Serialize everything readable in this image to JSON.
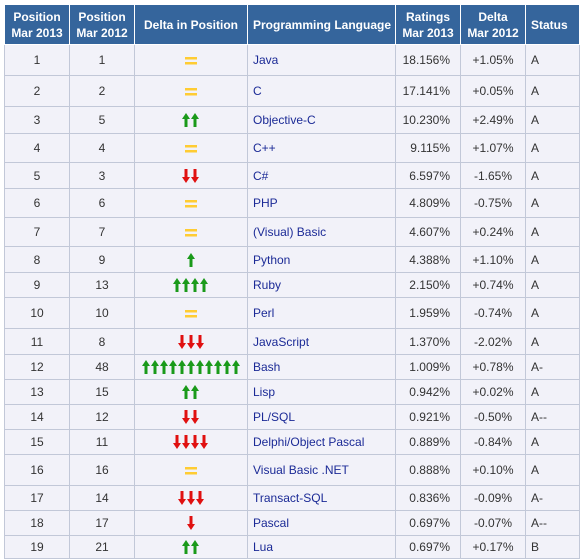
{
  "headers": {
    "pos2013": [
      "Position",
      "Mar 2013"
    ],
    "pos2012": [
      "Position",
      "Mar 2012"
    ],
    "delta_pos": "Delta in Position",
    "language": "Programming Language",
    "ratings": [
      "Ratings",
      "Mar 2013"
    ],
    "delta": [
      "Delta",
      "Mar 2012"
    ],
    "status": "Status"
  },
  "colors": {
    "header_bg": "#35659c",
    "row_bg": "#f2f2f9",
    "up_arrow": "#1a9a1a",
    "down_arrow": "#e01010",
    "equal_sign": "#ffcc33",
    "link_text": "#1b2a96"
  },
  "icons": {
    "up": "up-arrow-icon",
    "down": "down-arrow-icon",
    "same": "equal-sign-icon"
  },
  "rows": [
    {
      "pos2013": "1",
      "pos2012": "1",
      "change": "same",
      "arrows": 0,
      "language": "Java",
      "rating": "18.156%",
      "delta": "+1.05%",
      "status": "A"
    },
    {
      "pos2013": "2",
      "pos2012": "2",
      "change": "same",
      "arrows": 0,
      "language": "C",
      "rating": "17.141%",
      "delta": "+0.05%",
      "status": "A"
    },
    {
      "pos2013": "3",
      "pos2012": "5",
      "change": "up",
      "arrows": 2,
      "language": "Objective-C",
      "rating": "10.230%",
      "delta": "+2.49%",
      "status": "A"
    },
    {
      "pos2013": "4",
      "pos2012": "4",
      "change": "same",
      "arrows": 0,
      "language": "C++",
      "rating": "9.115%",
      "delta": "+1.07%",
      "status": "A"
    },
    {
      "pos2013": "5",
      "pos2012": "3",
      "change": "down",
      "arrows": 2,
      "language": "C#",
      "rating": "6.597%",
      "delta": "-1.65%",
      "status": "A"
    },
    {
      "pos2013": "6",
      "pos2012": "6",
      "change": "same",
      "arrows": 0,
      "language": "PHP",
      "rating": "4.809%",
      "delta": "-0.75%",
      "status": "A"
    },
    {
      "pos2013": "7",
      "pos2012": "7",
      "change": "same",
      "arrows": 0,
      "language": "(Visual) Basic",
      "rating": "4.607%",
      "delta": "+0.24%",
      "status": "A"
    },
    {
      "pos2013": "8",
      "pos2012": "9",
      "change": "up",
      "arrows": 1,
      "language": "Python",
      "rating": "4.388%",
      "delta": "+1.10%",
      "status": "A"
    },
    {
      "pos2013": "9",
      "pos2012": "13",
      "change": "up",
      "arrows": 4,
      "language": "Ruby",
      "rating": "2.150%",
      "delta": "+0.74%",
      "status": "A"
    },
    {
      "pos2013": "10",
      "pos2012": "10",
      "change": "same",
      "arrows": 0,
      "language": "Perl",
      "rating": "1.959%",
      "delta": "-0.74%",
      "status": "A"
    },
    {
      "pos2013": "11",
      "pos2012": "8",
      "change": "down",
      "arrows": 3,
      "language": "JavaScript",
      "rating": "1.370%",
      "delta": "-2.02%",
      "status": "A"
    },
    {
      "pos2013": "12",
      "pos2012": "48",
      "change": "up",
      "arrows": 11,
      "language": "Bash",
      "rating": "1.009%",
      "delta": "+0.78%",
      "status": "A-"
    },
    {
      "pos2013": "13",
      "pos2012": "15",
      "change": "up",
      "arrows": 2,
      "language": "Lisp",
      "rating": "0.942%",
      "delta": "+0.02%",
      "status": "A"
    },
    {
      "pos2013": "14",
      "pos2012": "12",
      "change": "down",
      "arrows": 2,
      "language": "PL/SQL",
      "rating": "0.921%",
      "delta": "-0.50%",
      "status": "A--"
    },
    {
      "pos2013": "15",
      "pos2012": "11",
      "change": "down",
      "arrows": 4,
      "language": "Delphi/Object Pascal",
      "rating": "0.889%",
      "delta": "-0.84%",
      "status": "A"
    },
    {
      "pos2013": "16",
      "pos2012": "16",
      "change": "same",
      "arrows": 0,
      "language": "Visual Basic .NET",
      "rating": "0.888%",
      "delta": "+0.10%",
      "status": "A"
    },
    {
      "pos2013": "17",
      "pos2012": "14",
      "change": "down",
      "arrows": 3,
      "language": "Transact-SQL",
      "rating": "0.836%",
      "delta": "-0.09%",
      "status": "A-"
    },
    {
      "pos2013": "18",
      "pos2012": "17",
      "change": "down",
      "arrows": 1,
      "language": "Pascal",
      "rating": "0.697%",
      "delta": "-0.07%",
      "status": "A--"
    },
    {
      "pos2013": "19",
      "pos2012": "21",
      "change": "up",
      "arrows": 2,
      "language": "Lua",
      "rating": "0.697%",
      "delta": "+0.17%",
      "status": "B"
    }
  ]
}
